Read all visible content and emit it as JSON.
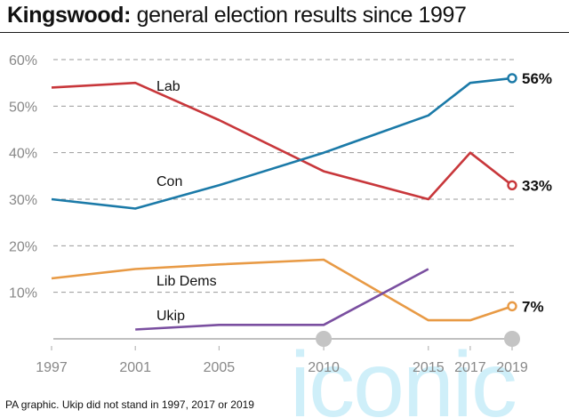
{
  "title": {
    "bold": "Kingswood:",
    "rest": " general election results since 1997"
  },
  "footnote": "PA graphic. Ukip did not stand in 1997, 2017 or 2019",
  "watermark": "iconic",
  "chart_data": {
    "type": "line",
    "title": "Kingswood: general election results since 1997",
    "x": [
      1997,
      2001,
      2005,
      2010,
      2015,
      2017,
      2019
    ],
    "x_tick_labels": [
      "1997",
      "2001",
      "2005",
      "2010",
      "2015",
      "2017",
      "2019"
    ],
    "y_tick_labels": [
      "10%",
      "20%",
      "30%",
      "40%",
      "50%",
      "60%"
    ],
    "y_ticks": [
      10,
      20,
      30,
      40,
      50,
      60
    ],
    "ylim": [
      0,
      60
    ],
    "grid": true,
    "series": [
      {
        "name": "Lab",
        "color": "#c8373b",
        "x": [
          1997,
          2001,
          2005,
          2010,
          2015,
          2017,
          2019
        ],
        "values": [
          54,
          55,
          47,
          36,
          30,
          40,
          33
        ],
        "end_label": "33%"
      },
      {
        "name": "Con",
        "color": "#1b7aa8",
        "x": [
          1997,
          2001,
          2005,
          2010,
          2015,
          2017,
          2019
        ],
        "values": [
          30,
          28,
          33,
          40,
          48,
          55,
          56
        ],
        "end_label": "56%"
      },
      {
        "name": "Lib Dems",
        "color": "#e89a45",
        "x": [
          1997,
          2001,
          2005,
          2010,
          2015,
          2017,
          2019
        ],
        "values": [
          13,
          15,
          16,
          17,
          4,
          4,
          7
        ],
        "end_label": "7%"
      },
      {
        "name": "Ukip",
        "color": "#7a4fa0",
        "x": [
          2001,
          2005,
          2010,
          2015
        ],
        "values": [
          2,
          3,
          3,
          15
        ],
        "end_label": ""
      }
    ]
  }
}
